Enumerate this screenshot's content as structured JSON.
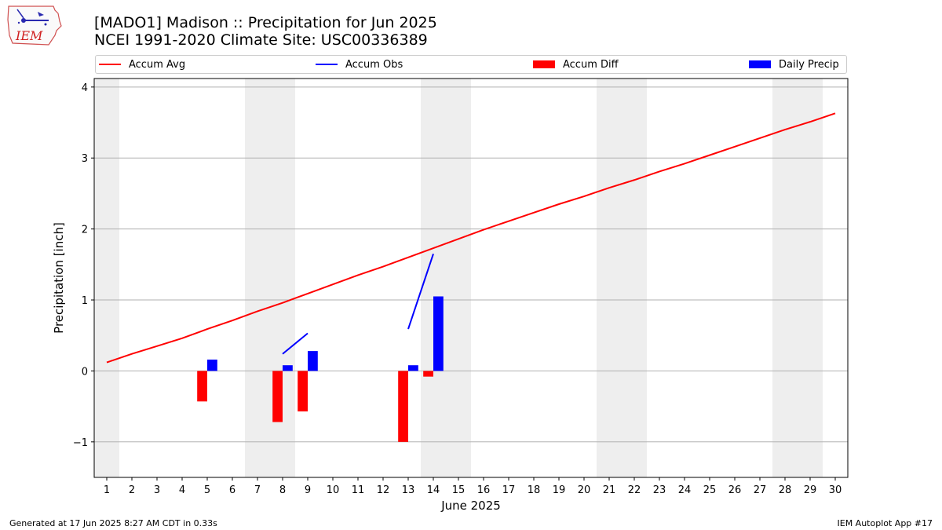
{
  "header": {
    "title_line1": "[MADO1] Madison :: Precipitation for Jun 2025",
    "title_line2": "NCEI 1991-2020 Climate Site: USC00336389"
  },
  "logo": {
    "text": "IEM"
  },
  "legend": {
    "items": [
      {
        "label": "Accum Avg",
        "color": "#ff0000",
        "kind": "line"
      },
      {
        "label": "Accum Obs",
        "color": "#0000ff",
        "kind": "line"
      },
      {
        "label": "Accum Diff",
        "color": "#ff0000",
        "kind": "bar"
      },
      {
        "label": "Daily Precip",
        "color": "#0000ff",
        "kind": "bar"
      }
    ]
  },
  "footer": {
    "left": "Generated at 17 Jun 2025 8:27 AM CDT in 0.33s",
    "right": "IEM Autoplot App #17"
  },
  "chart_data": {
    "type": "bar",
    "xlabel": "June 2025",
    "ylabel": "Precipitation [inch]",
    "xlim": [
      0.5,
      30.5
    ],
    "ylim": [
      -1.5,
      4.12
    ],
    "yticks": [
      -1,
      0,
      1,
      2,
      3,
      4
    ],
    "ytick_labels": [
      "−1",
      "0",
      "1",
      "2",
      "3",
      "4"
    ],
    "xticks": [
      1,
      2,
      3,
      4,
      5,
      6,
      7,
      8,
      9,
      10,
      11,
      12,
      13,
      14,
      15,
      16,
      17,
      18,
      19,
      20,
      21,
      22,
      23,
      24,
      25,
      26,
      27,
      28,
      29,
      30
    ],
    "grid": "horizontal",
    "weekend_shading": [
      [
        0.5,
        1.5
      ],
      [
        6.5,
        8.5
      ],
      [
        13.5,
        15.5
      ],
      [
        20.5,
        22.5
      ],
      [
        27.5,
        29.5
      ]
    ],
    "series": [
      {
        "name": "Accum Avg",
        "kind": "line",
        "color": "#ff0000",
        "x": [
          1,
          2,
          3,
          4,
          5,
          6,
          7,
          8,
          9,
          10,
          11,
          12,
          13,
          14,
          15,
          16,
          17,
          18,
          19,
          20,
          21,
          22,
          23,
          24,
          25,
          26,
          27,
          28,
          29,
          30
        ],
        "y": [
          0.12,
          0.24,
          0.35,
          0.46,
          0.59,
          0.71,
          0.84,
          0.96,
          1.09,
          1.22,
          1.35,
          1.47,
          1.6,
          1.73,
          1.86,
          1.99,
          2.11,
          2.23,
          2.35,
          2.46,
          2.58,
          2.69,
          2.81,
          2.92,
          3.04,
          3.16,
          3.28,
          3.4,
          3.51,
          3.63
        ]
      },
      {
        "name": "Accum Obs",
        "kind": "line",
        "color": "#0000ff",
        "segments": [
          {
            "x": [
              8,
              9
            ],
            "y": [
              0.24,
              0.53
            ]
          },
          {
            "x": [
              13,
              14
            ],
            "y": [
              0.59,
              1.65
            ]
          }
        ]
      },
      {
        "name": "Accum Diff",
        "kind": "bar",
        "color": "#ff0000",
        "x": [
          5,
          8,
          9,
          13,
          14
        ],
        "y": [
          -0.43,
          -0.72,
          -0.57,
          -1.0,
          -0.08
        ]
      },
      {
        "name": "Daily Precip",
        "kind": "bar",
        "color": "#0000ff",
        "x": [
          5,
          8,
          9,
          13,
          14
        ],
        "y": [
          0.16,
          0.08,
          0.28,
          0.08,
          1.05
        ]
      }
    ]
  }
}
